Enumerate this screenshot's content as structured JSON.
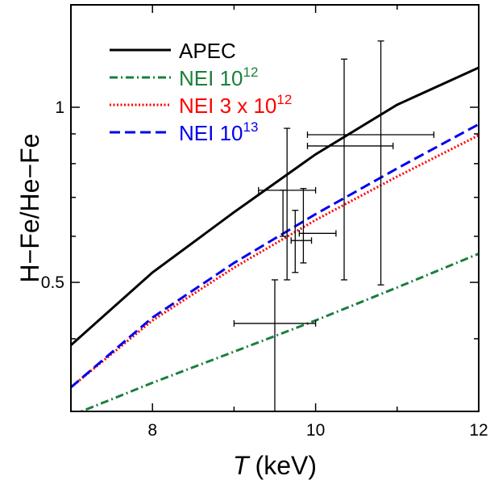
{
  "chart_data": {
    "type": "line",
    "xlabel_italic": "T",
    "xlabel_unit": "(keV)",
    "ylabel": "H−Fe/He−Fe",
    "xlim": [
      7,
      12
    ],
    "ylim_log": [
      0.3,
      1.5
    ],
    "xscale": "linear",
    "yscale": "log",
    "x_ticks": [
      8,
      10,
      12
    ],
    "y_ticks": [
      0.5,
      1
    ],
    "y_tick_labels": [
      "0.5",
      "1"
    ],
    "grid": false,
    "legend_position": "top-left",
    "series": [
      {
        "name": "APEC",
        "name_parts": [
          "APEC",
          ""
        ],
        "color": "#000000",
        "dash": "solid",
        "x": [
          7,
          8,
          9,
          10,
          11,
          12
        ],
        "y": [
          0.39,
          0.52,
          0.66,
          0.83,
          1.01,
          1.17
        ]
      },
      {
        "name": "NEI 10^12",
        "name_parts": [
          "NEI  10",
          "12"
        ],
        "color": "#1a7f3c",
        "dash": "dashdot",
        "x": [
          7,
          8,
          9,
          10,
          11,
          12
        ],
        "y": [
          0.295,
          0.336,
          0.38,
          0.43,
          0.49,
          0.56
        ]
      },
      {
        "name": "NEI 3 x 10^12",
        "name_parts": [
          "NEI 3 x 10",
          "12"
        ],
        "color": "#ff0000",
        "dash": "dotted",
        "x": [
          7,
          8,
          9,
          10,
          11,
          12
        ],
        "y": [
          0.33,
          0.43,
          0.53,
          0.64,
          0.76,
          0.895
        ]
      },
      {
        "name": "NEI 10^13",
        "name_parts": [
          "NEI  10",
          "13"
        ],
        "color": "#0000ee",
        "dash": "dashed",
        "x": [
          7,
          8,
          9,
          10,
          11,
          12
        ],
        "y": [
          0.33,
          0.435,
          0.54,
          0.655,
          0.785,
          0.935
        ]
      }
    ],
    "data_points": [
      {
        "x": 9.5,
        "xerr": [
          9.0,
          10.0
        ],
        "y": 0.425,
        "yerr": [
          0.3,
          0.505
        ]
      },
      {
        "x": 9.65,
        "xerr": [
          9.65,
          9.65
        ],
        "y": 0.575,
        "yerr": [
          0.505,
          0.92
        ]
      },
      {
        "x": 9.75,
        "xerr": [
          9.7,
          9.95
        ],
        "y": 0.59,
        "yerr": [
          0.52,
          0.665
        ]
      },
      {
        "x": 9.85,
        "xerr": [
          9.8,
          10.25
        ],
        "y": 0.607,
        "yerr": [
          0.54,
          0.725
        ]
      },
      {
        "x": 9.6,
        "xerr": [
          9.3,
          10.0
        ],
        "y": 0.72,
        "yerr": [
          0.6,
          0.72
        ]
      },
      {
        "x": 10.35,
        "xerr": [
          10.35,
          10.35
        ],
        "y": 0.86,
        "yerr": [
          0.505,
          1.21
        ]
      },
      {
        "x": 10.45,
        "xerr": [
          9.9,
          11.45
        ],
        "y": 0.897,
        "yerr": [
          0.897,
          0.897
        ]
      },
      {
        "x": 10.6,
        "xerr": [
          9.9,
          10.95
        ],
        "y": 0.858,
        "yerr": [
          0.858,
          0.858
        ]
      },
      {
        "x": 10.8,
        "xerr": [
          10.8,
          10.8
        ],
        "y": 0.88,
        "yerr": [
          0.495,
          1.3
        ]
      }
    ]
  }
}
